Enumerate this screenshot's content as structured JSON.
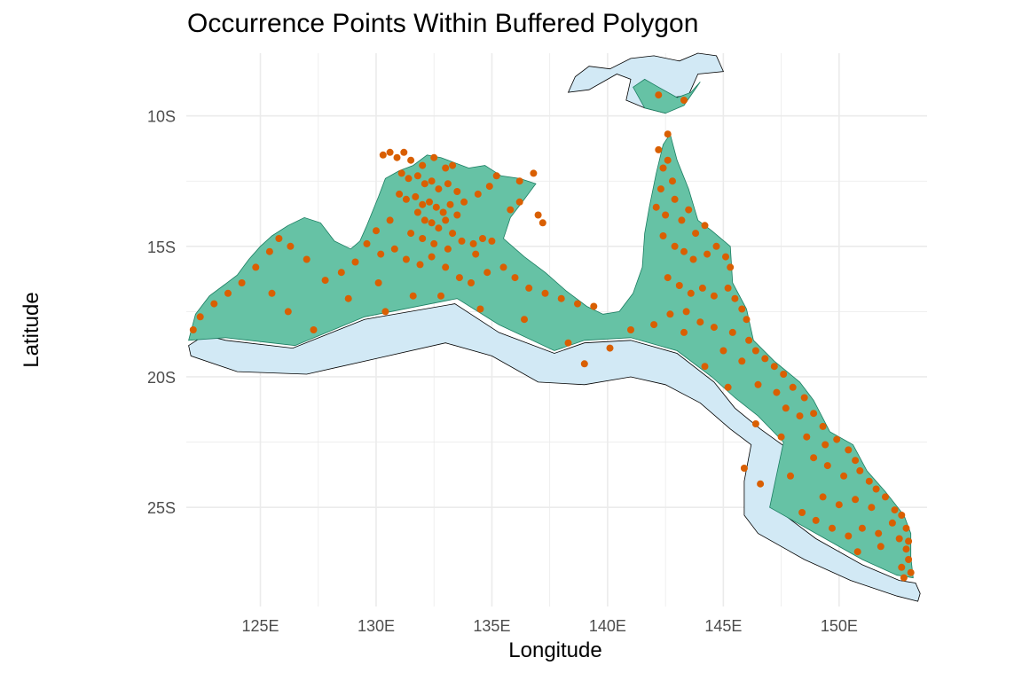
{
  "chart_data": {
    "type": "scatter",
    "title": "Occurrence Points Within Buffered Polygon",
    "xlabel": "Longitude",
    "ylabel": "Latitude",
    "xlim": [
      121.8,
      153.8
    ],
    "ylim": [
      -28.8,
      -7.6
    ],
    "x_ticks": [
      125,
      130,
      135,
      140,
      145,
      150
    ],
    "y_ticks": [
      -10,
      -15,
      -20,
      -25
    ],
    "x_tick_labels": [
      "125E",
      "130E",
      "135E",
      "140E",
      "145E",
      "150E"
    ],
    "y_tick_labels": [
      "10S",
      "15S",
      "20S",
      "25S"
    ],
    "grid": true,
    "colors": {
      "points": "#d95f02",
      "polygon": "#66c2a5",
      "polygon_stroke": "#1b7e62",
      "buffer": "#d2e9f5",
      "grid": "#ebebeb"
    },
    "polygon": [
      [
        121.9,
        -18.6
      ],
      [
        122.2,
        -17.6
      ],
      [
        122.8,
        -16.9
      ],
      [
        123.4,
        -16.5
      ],
      [
        124.0,
        -16.1
      ],
      [
        124.5,
        -15.5
      ],
      [
        125.0,
        -15.0
      ],
      [
        125.5,
        -14.6
      ],
      [
        126.2,
        -14.2
      ],
      [
        126.9,
        -13.9
      ],
      [
        127.6,
        -14.1
      ],
      [
        128.2,
        -14.8
      ],
      [
        128.9,
        -15.1
      ],
      [
        129.3,
        -14.8
      ],
      [
        129.6,
        -14.2
      ],
      [
        130.1,
        -13.1
      ],
      [
        130.4,
        -12.4
      ],
      [
        131.0,
        -12.1
      ],
      [
        131.6,
        -11.9
      ],
      [
        132.2,
        -11.5
      ],
      [
        132.8,
        -11.6
      ],
      [
        133.4,
        -11.8
      ],
      [
        134.0,
        -12.0
      ],
      [
        134.7,
        -11.9
      ],
      [
        135.4,
        -12.3
      ],
      [
        136.2,
        -12.4
      ],
      [
        136.9,
        -12.6
      ],
      [
        136.4,
        -13.2
      ],
      [
        135.8,
        -13.9
      ],
      [
        135.5,
        -14.7
      ],
      [
        136.4,
        -15.4
      ],
      [
        137.3,
        -16.0
      ],
      [
        138.2,
        -16.7
      ],
      [
        139.1,
        -17.3
      ],
      [
        139.8,
        -17.6
      ],
      [
        140.5,
        -17.5
      ],
      [
        141.1,
        -16.8
      ],
      [
        141.5,
        -15.8
      ],
      [
        141.6,
        -14.5
      ],
      [
        141.8,
        -13.5
      ],
      [
        142.1,
        -12.2
      ],
      [
        142.4,
        -11.1
      ],
      [
        142.7,
        -10.7
      ],
      [
        143.0,
        -11.7
      ],
      [
        143.5,
        -12.8
      ],
      [
        143.9,
        -14.0
      ],
      [
        144.5,
        -14.4
      ],
      [
        145.3,
        -15.0
      ],
      [
        145.4,
        -16.4
      ],
      [
        146.0,
        -17.4
      ],
      [
        146.3,
        -18.6
      ],
      [
        147.2,
        -19.4
      ],
      [
        148.3,
        -20.2
      ],
      [
        148.9,
        -20.9
      ],
      [
        149.6,
        -22.1
      ],
      [
        150.6,
        -22.6
      ],
      [
        151.2,
        -23.6
      ],
      [
        152.0,
        -24.4
      ],
      [
        152.8,
        -25.3
      ],
      [
        153.1,
        -26.0
      ],
      [
        153.1,
        -26.9
      ],
      [
        153.2,
        -27.7
      ],
      [
        152.5,
        -27.6
      ],
      [
        151.0,
        -27.0
      ],
      [
        149.0,
        -26.0
      ],
      [
        147.0,
        -25.0
      ],
      [
        147.6,
        -22.5
      ],
      [
        146.5,
        -21.5
      ],
      [
        145.5,
        -20.8
      ],
      [
        144.5,
        -20.0
      ],
      [
        143.0,
        -19.0
      ],
      [
        141.0,
        -18.5
      ],
      [
        139.0,
        -18.6
      ],
      [
        137.7,
        -19.0
      ],
      [
        135.3,
        -18.0
      ],
      [
        133.5,
        -17.0
      ],
      [
        129.5,
        -17.7
      ],
      [
        126.5,
        -18.8
      ],
      [
        123.5,
        -18.5
      ],
      [
        121.9,
        -18.6
      ]
    ],
    "buffer": [
      [
        121.9,
        -18.8
      ],
      [
        122.6,
        -18.4
      ],
      [
        123.5,
        -18.6
      ],
      [
        126.4,
        -18.9
      ],
      [
        129.5,
        -17.8
      ],
      [
        133.4,
        -17.2
      ],
      [
        135.3,
        -18.3
      ],
      [
        137.7,
        -19.1
      ],
      [
        139.0,
        -18.7
      ],
      [
        141.0,
        -18.6
      ],
      [
        143.0,
        -19.1
      ],
      [
        144.6,
        -20.2
      ],
      [
        145.5,
        -21.2
      ],
      [
        146.6,
        -22.0
      ],
      [
        147.7,
        -22.7
      ],
      [
        147.2,
        -25.0
      ],
      [
        149.0,
        -26.2
      ],
      [
        151.0,
        -27.2
      ],
      [
        152.6,
        -27.8
      ],
      [
        153.3,
        -27.9
      ],
      [
        153.5,
        -28.3
      ],
      [
        153.4,
        -28.6
      ],
      [
        152.5,
        -28.4
      ],
      [
        150.5,
        -27.8
      ],
      [
        148.5,
        -27.0
      ],
      [
        146.5,
        -26.0
      ],
      [
        145.9,
        -25.3
      ],
      [
        145.9,
        -24.0
      ],
      [
        146.2,
        -22.6
      ],
      [
        145.3,
        -22.0
      ],
      [
        144.0,
        -21.0
      ],
      [
        142.5,
        -20.3
      ],
      [
        141.0,
        -20.0
      ],
      [
        139.0,
        -20.3
      ],
      [
        137.0,
        -20.2
      ],
      [
        135.0,
        -19.2
      ],
      [
        133.0,
        -18.7
      ],
      [
        130.0,
        -19.3
      ],
      [
        127.0,
        -19.9
      ],
      [
        124.0,
        -19.8
      ],
      [
        122.0,
        -19.2
      ],
      [
        121.9,
        -18.8
      ]
    ],
    "north_inset_buffer": [
      [
        138.3,
        -9.1
      ],
      [
        138.6,
        -8.5
      ],
      [
        139.2,
        -8.1
      ],
      [
        140.1,
        -8.2
      ],
      [
        141.0,
        -7.8
      ],
      [
        142.0,
        -7.7
      ],
      [
        143.1,
        -7.9
      ],
      [
        143.9,
        -7.6
      ],
      [
        144.7,
        -7.7
      ],
      [
        145.0,
        -8.3
      ],
      [
        143.9,
        -8.4
      ],
      [
        143.5,
        -9.2
      ],
      [
        142.8,
        -9.3
      ],
      [
        142.5,
        -9.9
      ],
      [
        141.6,
        -9.7
      ],
      [
        140.8,
        -9.4
      ],
      [
        141.0,
        -8.6
      ],
      [
        140.4,
        -8.4
      ],
      [
        139.2,
        -9.0
      ],
      [
        138.3,
        -9.1
      ]
    ],
    "north_inset_polygon": [
      [
        141.1,
        -8.9
      ],
      [
        141.6,
        -8.6
      ],
      [
        142.2,
        -8.9
      ],
      [
        143.0,
        -9.3
      ],
      [
        143.6,
        -9.1
      ],
      [
        144.0,
        -8.7
      ],
      [
        143.3,
        -9.6
      ],
      [
        142.5,
        -9.9
      ],
      [
        141.6,
        -9.7
      ],
      [
        141.1,
        -8.9
      ]
    ],
    "points": [
      [
        130.3,
        -11.5
      ],
      [
        130.6,
        -11.4
      ],
      [
        130.9,
        -11.6
      ],
      [
        131.2,
        -11.4
      ],
      [
        131.5,
        -11.7
      ],
      [
        132.0,
        -11.9
      ],
      [
        132.5,
        -11.6
      ],
      [
        133.0,
        -12.0
      ],
      [
        133.3,
        -11.9
      ],
      [
        131.1,
        -12.2
      ],
      [
        131.4,
        -12.4
      ],
      [
        131.8,
        -12.3
      ],
      [
        132.1,
        -12.6
      ],
      [
        132.4,
        -12.5
      ],
      [
        132.7,
        -12.8
      ],
      [
        133.1,
        -12.6
      ],
      [
        133.5,
        -12.9
      ],
      [
        131.0,
        -13.0
      ],
      [
        131.3,
        -13.2
      ],
      [
        131.7,
        -13.1
      ],
      [
        132.0,
        -13.4
      ],
      [
        132.3,
        -13.3
      ],
      [
        132.6,
        -13.5
      ],
      [
        132.9,
        -13.7
      ],
      [
        133.2,
        -13.4
      ],
      [
        133.5,
        -13.8
      ],
      [
        131.8,
        -13.7
      ],
      [
        132.1,
        -14.0
      ],
      [
        132.4,
        -14.1
      ],
      [
        132.7,
        -14.3
      ],
      [
        133.0,
        -14.0
      ],
      [
        133.3,
        -14.5
      ],
      [
        131.5,
        -14.5
      ],
      [
        132.0,
        -14.7
      ],
      [
        132.5,
        -14.9
      ],
      [
        133.1,
        -15.1
      ],
      [
        133.7,
        -14.8
      ],
      [
        134.2,
        -14.9
      ],
      [
        134.6,
        -14.7
      ],
      [
        135.0,
        -14.8
      ],
      [
        130.0,
        -14.4
      ],
      [
        130.6,
        -14.0
      ],
      [
        129.6,
        -14.9
      ],
      [
        130.2,
        -15.3
      ],
      [
        130.8,
        -15.1
      ],
      [
        131.3,
        -15.5
      ],
      [
        131.9,
        -15.7
      ],
      [
        132.4,
        -15.4
      ],
      [
        133.0,
        -15.8
      ],
      [
        133.6,
        -16.2
      ],
      [
        134.1,
        -16.4
      ],
      [
        134.8,
        -16.0
      ],
      [
        135.5,
        -15.8
      ],
      [
        136.0,
        -16.2
      ],
      [
        136.6,
        -16.6
      ],
      [
        137.3,
        -16.8
      ],
      [
        138.0,
        -17.0
      ],
      [
        138.7,
        -17.2
      ],
      [
        139.4,
        -17.3
      ],
      [
        136.2,
        -12.5
      ],
      [
        136.8,
        -12.2
      ],
      [
        135.8,
        -13.6
      ],
      [
        136.2,
        -13.3
      ],
      [
        137.0,
        -13.8
      ],
      [
        137.2,
        -14.1
      ],
      [
        134.4,
        -13.0
      ],
      [
        134.9,
        -12.7
      ],
      [
        135.2,
        -12.3
      ],
      [
        129.1,
        -15.6
      ],
      [
        128.5,
        -16.0
      ],
      [
        127.8,
        -16.3
      ],
      [
        127.0,
        -15.5
      ],
      [
        126.3,
        -15.0
      ],
      [
        125.8,
        -14.7
      ],
      [
        125.4,
        -15.2
      ],
      [
        124.8,
        -15.8
      ],
      [
        124.2,
        -16.4
      ],
      [
        123.6,
        -16.8
      ],
      [
        123.0,
        -17.2
      ],
      [
        122.4,
        -17.7
      ],
      [
        122.1,
        -18.2
      ],
      [
        125.5,
        -16.8
      ],
      [
        126.2,
        -17.5
      ],
      [
        127.3,
        -18.2
      ],
      [
        128.8,
        -17.0
      ],
      [
        130.1,
        -16.4
      ],
      [
        130.4,
        -17.5
      ],
      [
        131.6,
        -16.9
      ],
      [
        132.8,
        -16.9
      ],
      [
        134.5,
        -17.4
      ],
      [
        136.4,
        -17.8
      ],
      [
        138.3,
        -18.7
      ],
      [
        139.0,
        -19.5
      ],
      [
        140.1,
        -18.9
      ],
      [
        141.0,
        -18.2
      ],
      [
        142.0,
        -18.0
      ],
      [
        143.3,
        -18.3
      ],
      [
        142.2,
        -11.3
      ],
      [
        142.4,
        -12.0
      ],
      [
        142.6,
        -11.7
      ],
      [
        142.3,
        -12.8
      ],
      [
        142.8,
        -12.5
      ],
      [
        142.1,
        -13.5
      ],
      [
        142.5,
        -13.8
      ],
      [
        142.9,
        -13.2
      ],
      [
        143.2,
        -14.0
      ],
      [
        143.5,
        -13.6
      ],
      [
        143.8,
        -14.5
      ],
      [
        144.2,
        -14.2
      ],
      [
        142.4,
        -14.6
      ],
      [
        142.9,
        -15.0
      ],
      [
        143.3,
        -15.2
      ],
      [
        143.7,
        -15.5
      ],
      [
        144.3,
        -15.3
      ],
      [
        144.7,
        -15.0
      ],
      [
        145.1,
        -15.4
      ],
      [
        145.3,
        -15.8
      ],
      [
        142.6,
        -16.2
      ],
      [
        143.1,
        -16.5
      ],
      [
        143.6,
        -16.8
      ],
      [
        144.1,
        -16.6
      ],
      [
        144.6,
        -16.9
      ],
      [
        145.2,
        -16.6
      ],
      [
        145.5,
        -17.0
      ],
      [
        145.8,
        -17.4
      ],
      [
        146.0,
        -17.8
      ],
      [
        142.7,
        -17.6
      ],
      [
        143.4,
        -17.5
      ],
      [
        144.0,
        -17.9
      ],
      [
        144.6,
        -18.1
      ],
      [
        145.4,
        -18.3
      ],
      [
        146.1,
        -18.6
      ],
      [
        146.4,
        -19.0
      ],
      [
        145.0,
        -19.0
      ],
      [
        145.8,
        -19.4
      ],
      [
        146.8,
        -19.3
      ],
      [
        147.2,
        -19.6
      ],
      [
        147.6,
        -19.9
      ],
      [
        146.5,
        -20.3
      ],
      [
        147.3,
        -20.6
      ],
      [
        148.0,
        -20.4
      ],
      [
        148.5,
        -20.8
      ],
      [
        147.7,
        -21.2
      ],
      [
        148.3,
        -21.5
      ],
      [
        148.9,
        -21.4
      ],
      [
        149.3,
        -21.9
      ],
      [
        148.6,
        -22.3
      ],
      [
        149.4,
        -22.6
      ],
      [
        149.9,
        -22.4
      ],
      [
        150.4,
        -22.8
      ],
      [
        150.7,
        -23.2
      ],
      [
        149.5,
        -23.4
      ],
      [
        150.2,
        -23.8
      ],
      [
        150.9,
        -23.6
      ],
      [
        151.3,
        -24.0
      ],
      [
        151.6,
        -24.3
      ],
      [
        149.3,
        -24.6
      ],
      [
        150.0,
        -24.9
      ],
      [
        150.7,
        -24.7
      ],
      [
        151.4,
        -25.0
      ],
      [
        152.0,
        -24.6
      ],
      [
        152.4,
        -25.1
      ],
      [
        148.4,
        -25.2
      ],
      [
        149.0,
        -25.5
      ],
      [
        149.7,
        -25.8
      ],
      [
        150.4,
        -26.1
      ],
      [
        151.0,
        -25.8
      ],
      [
        151.7,
        -26.0
      ],
      [
        152.3,
        -25.6
      ],
      [
        152.7,
        -25.3
      ],
      [
        152.9,
        -25.8
      ],
      [
        152.6,
        -26.2
      ],
      [
        152.9,
        -26.6
      ],
      [
        153.0,
        -27.0
      ],
      [
        152.7,
        -27.3
      ],
      [
        153.1,
        -27.5
      ],
      [
        152.8,
        -27.7
      ],
      [
        151.8,
        -26.5
      ],
      [
        150.8,
        -26.7
      ],
      [
        153.0,
        -26.3
      ],
      [
        147.9,
        -23.8
      ],
      [
        146.6,
        -24.1
      ],
      [
        145.9,
        -23.5
      ],
      [
        147.5,
        -22.3
      ],
      [
        146.4,
        -21.8
      ],
      [
        145.2,
        -20.4
      ],
      [
        144.2,
        -19.6
      ],
      [
        148.9,
        -23.1
      ],
      [
        142.2,
        -9.2
      ],
      [
        143.3,
        -9.4
      ],
      [
        142.6,
        -10.7
      ],
      [
        133.8,
        -13.3
      ],
      [
        134.3,
        -15.3
      ]
    ]
  }
}
